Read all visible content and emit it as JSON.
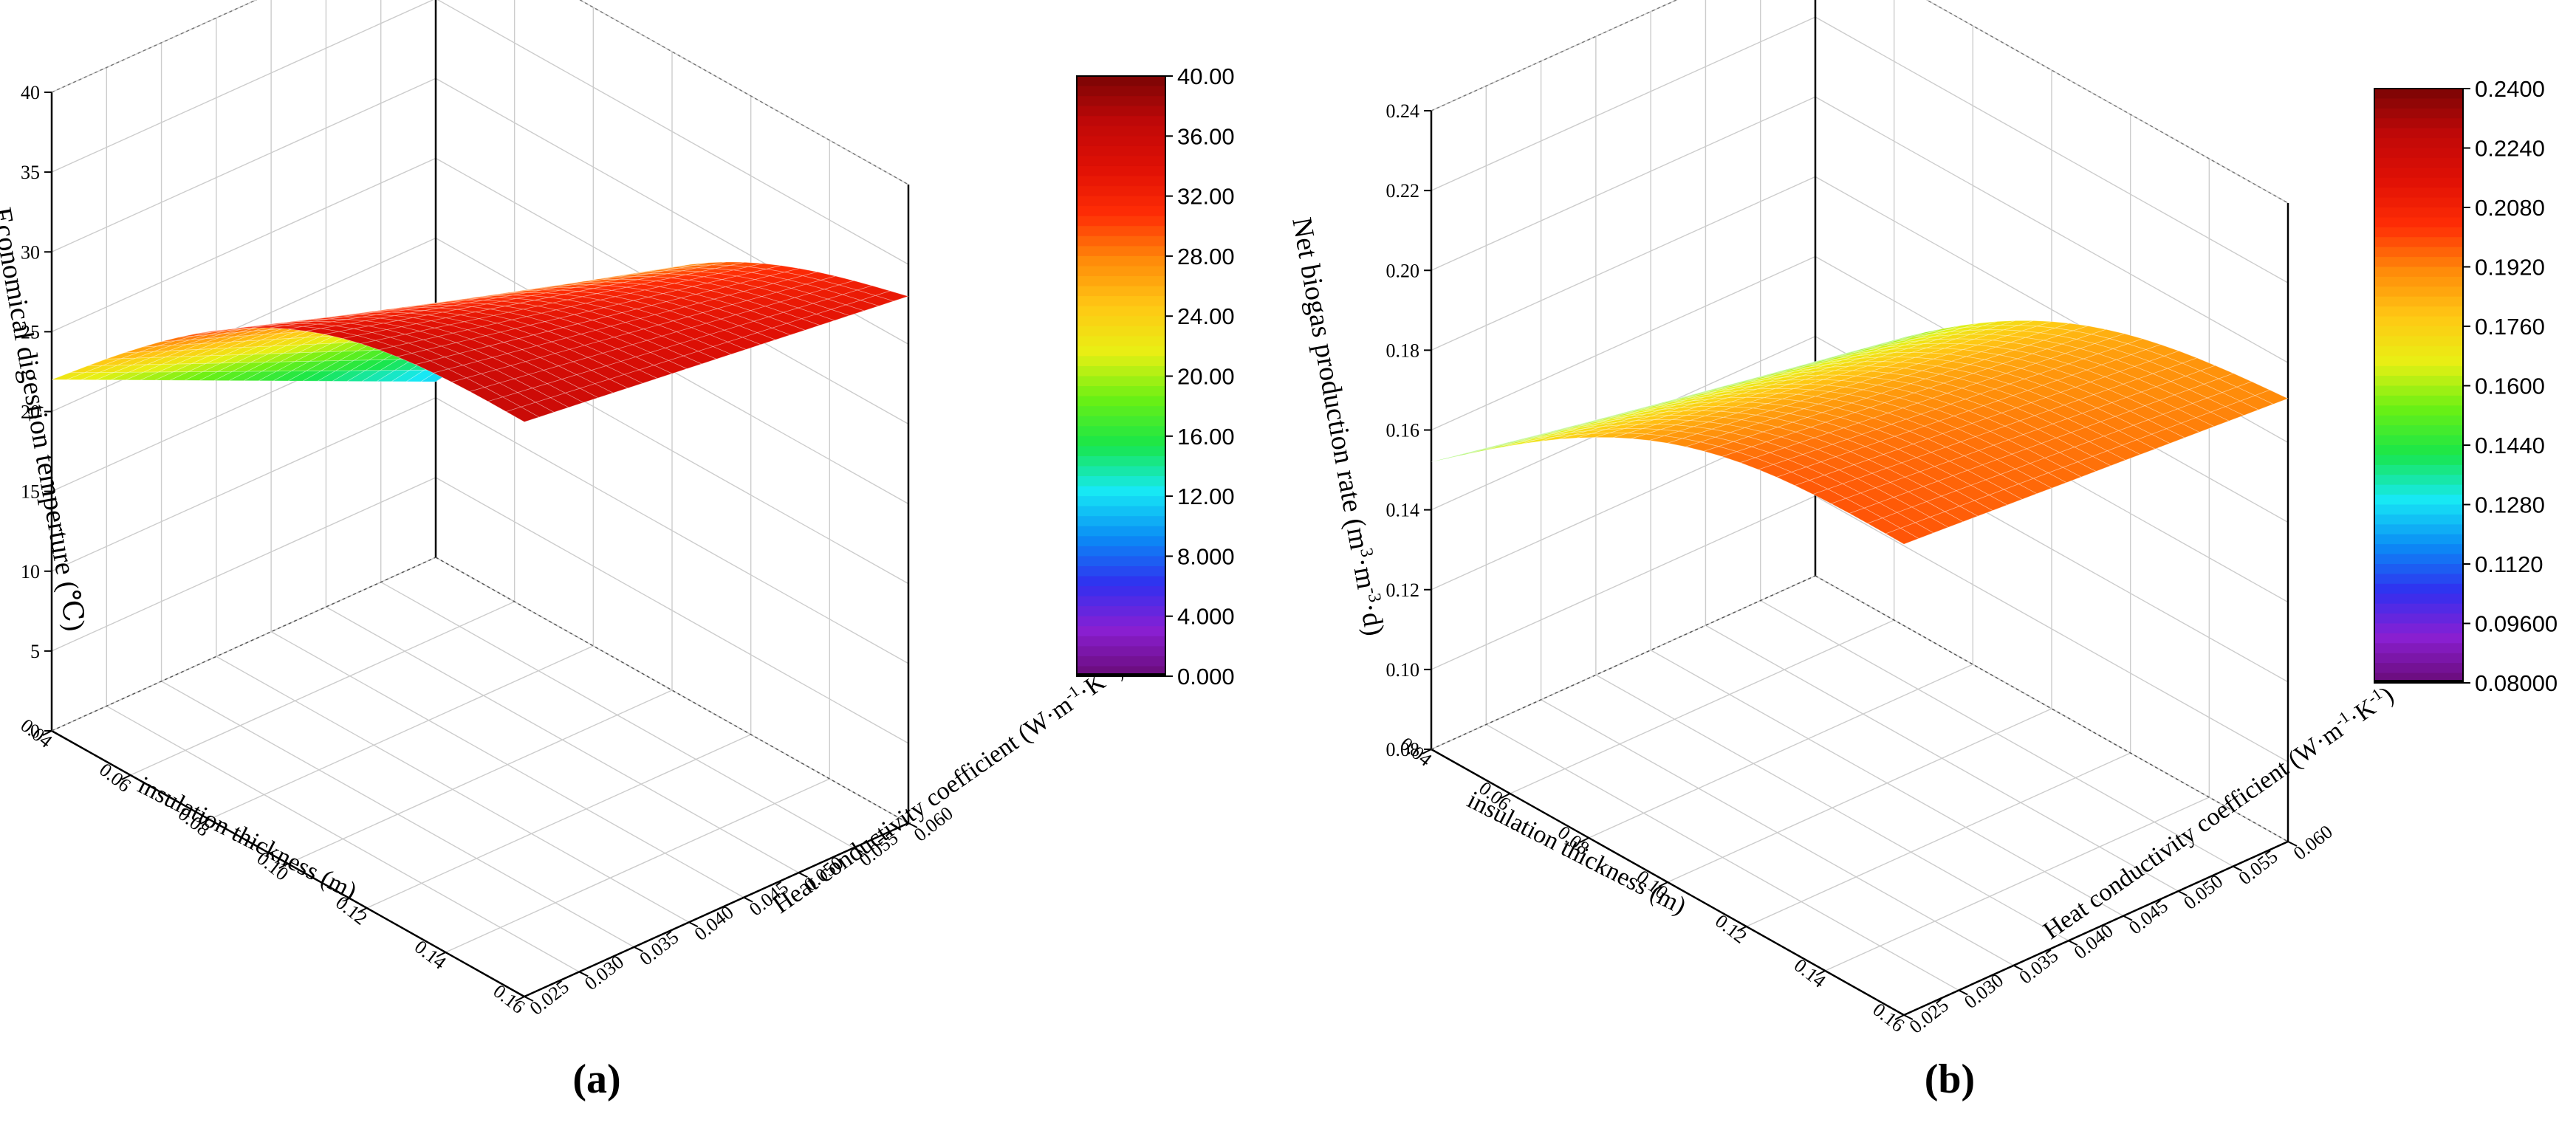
{
  "colors": {
    "palette": [
      "#6a0c78",
      "#8a1fd2",
      "#3030f0",
      "#0a8cf5",
      "#17e8f5",
      "#18e64a",
      "#6af014",
      "#e8f014",
      "#ffc814",
      "#ff8c0a",
      "#ff2d05",
      "#e01005",
      "#c00808",
      "#7a0505"
    ],
    "grid": "#cccccc",
    "mesh": "#ffffff"
  },
  "chart_data": [
    {
      "type": "surface",
      "panel_label": "(a)",
      "xlabel": "insulation thickness (m)",
      "ylabel": "Economical digestion temperture (℃)",
      "zlabel_text": "Heat conductivity coefficient (W·m",
      "zlabel_sup1": "-1",
      "zlabel_mid": "·K",
      "zlabel_sup2": "-1",
      "zlabel_end": ")",
      "x_ticks": [
        "0.04",
        "0.06",
        "0.08",
        "0.10",
        "0.12",
        "0.14",
        "0.16"
      ],
      "z_ticks": [
        "0.025",
        "0.030",
        "0.035",
        "0.040",
        "0.045",
        "0.050",
        "0.055",
        "0.060"
      ],
      "y_ticks": [
        "0",
        "5",
        "10",
        "15",
        "20",
        "25",
        "30",
        "35",
        "40"
      ],
      "x_range": [
        0.04,
        0.16
      ],
      "z_range": [
        0.025,
        0.06
      ],
      "y_range": [
        0,
        40
      ],
      "colorbar_ticks": [
        "40.00",
        "36.00",
        "32.00",
        "28.00",
        "24.00",
        "20.00",
        "16.00",
        "12.00",
        "8.000",
        "4.000",
        "0.000"
      ],
      "colorbar_range": [
        0,
        40
      ],
      "corners": {
        "x_min_z_min": 22,
        "x_max_z_min": 36,
        "x_min_z_max": 11,
        "x_max_z_max": 33
      },
      "curvature": 9
    },
    {
      "type": "surface",
      "panel_label": "(b)",
      "xlabel": "insulation thickness (m)",
      "ylabel": "Net biogas production rate (m",
      "ylabel_sup1": "3",
      "ylabel_mid": "·m",
      "ylabel_sup2": "-3",
      "ylabel_end": "·d)",
      "zlabel_text": "Heat conductivity coefficient (W·m",
      "zlabel_sup1": "-1",
      "zlabel_mid": "·K",
      "zlabel_sup2": "-1",
      "zlabel_end": ")",
      "x_ticks": [
        "0.04",
        "0.06",
        "0.08",
        "0.10",
        "0.12",
        "0.14",
        "0.16"
      ],
      "z_ticks": [
        "0.025",
        "0.030",
        "0.035",
        "0.040",
        "0.045",
        "0.050",
        "0.055",
        "0.060"
      ],
      "y_ticks": [
        "0.08",
        "0.10",
        "0.12",
        "0.14",
        "0.16",
        "0.18",
        "0.20",
        "0.22",
        "0.24"
      ],
      "x_range": [
        0.04,
        0.16
      ],
      "z_range": [
        0.025,
        0.06
      ],
      "y_range": [
        0.08,
        0.24
      ],
      "colorbar_ticks": [
        "0.2400",
        "0.2240",
        "0.2080",
        "0.1920",
        "0.1760",
        "0.1600",
        "0.1440",
        "0.1280",
        "0.1120",
        "0.09600",
        "0.08000"
      ],
      "colorbar_range": [
        0.08,
        0.24
      ],
      "corners": {
        "x_min_z_min": 0.152,
        "x_max_z_min": 0.198,
        "x_min_z_max": 0.133,
        "x_max_z_max": 0.191
      },
      "curvature": 0.03
    }
  ]
}
